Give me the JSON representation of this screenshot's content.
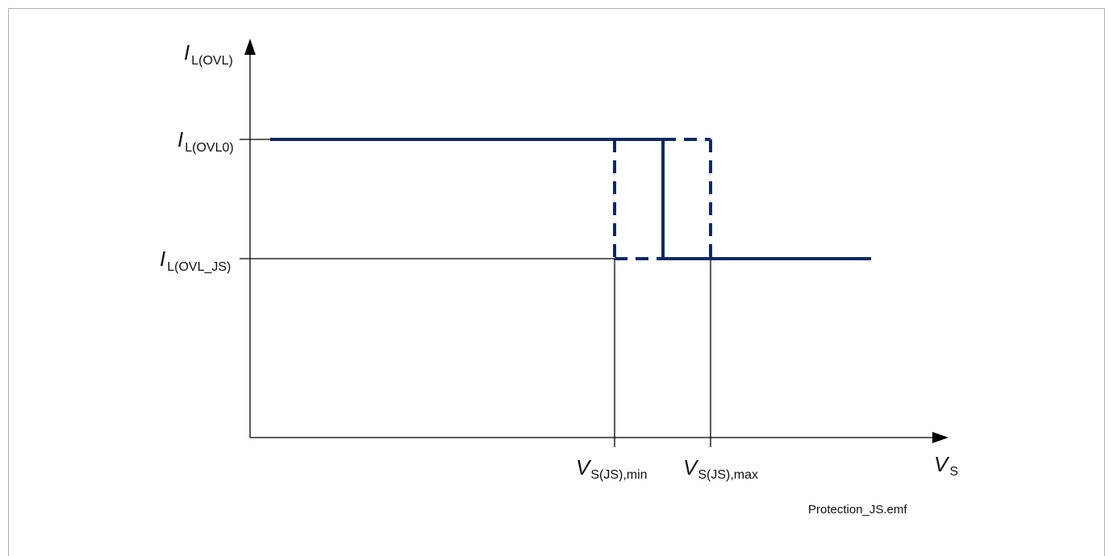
{
  "diagram": {
    "y_axis": {
      "symbol": "I",
      "subscript": "L(OVL)"
    },
    "x_axis": {
      "symbol": "V",
      "subscript": "S"
    },
    "levels": [
      {
        "symbol": "I",
        "subscript": "L(OVL0)"
      },
      {
        "symbol": "I",
        "subscript": "L(OVL_JS)"
      }
    ],
    "thresholds": [
      {
        "symbol": "V",
        "subscript": "S(JS),min"
      },
      {
        "symbol": "V",
        "subscript": "S(JS),max"
      }
    ],
    "filename": "Protection_JS.emf",
    "colors": {
      "curve": "#0d2a66",
      "axis": "#000000",
      "frame": "#b0b0b0"
    }
  }
}
